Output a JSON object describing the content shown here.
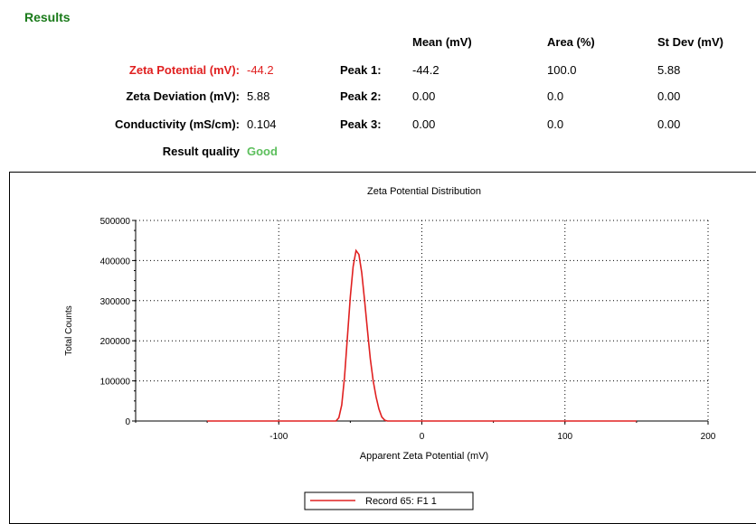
{
  "results": {
    "title": "Results",
    "zeta_potential": {
      "label": "Zeta Potential (mV):",
      "value": "-44.2"
    },
    "zeta_deviation": {
      "label": "Zeta Deviation (mV):",
      "value": "5.88"
    },
    "conductivity": {
      "label": "Conductivity (mS/cm):",
      "value": "0.104"
    },
    "quality": {
      "label": "Result quality",
      "value": "Good"
    }
  },
  "peaks": {
    "headers": {
      "mean": "Mean (mV)",
      "area": "Area (%)",
      "stdev": "St Dev (mV)"
    },
    "rows": [
      {
        "label": "Peak 1:",
        "mean": "-44.2",
        "area": "100.0",
        "stdev": "5.88"
      },
      {
        "label": "Peak 2:",
        "mean": "0.00",
        "area": "0.0",
        "stdev": "0.00"
      },
      {
        "label": "Peak 3:",
        "mean": "0.00",
        "area": "0.0",
        "stdev": "0.00"
      }
    ]
  },
  "colors": {
    "series": "#e02020",
    "title_green": "#1a7a1a",
    "good": "#5cbf5c",
    "value_red": "#e02020"
  },
  "chart_data": {
    "type": "line",
    "title": "Zeta Potential Distribution",
    "xlabel": "Apparent Zeta Potential (mV)",
    "ylabel": "Total Counts",
    "xlim": [
      -200,
      200
    ],
    "ylim": [
      0,
      500000
    ],
    "x_ticks": [
      -100,
      0,
      100,
      200
    ],
    "y_ticks": [
      0,
      100000,
      200000,
      300000,
      400000,
      500000
    ],
    "x_tick_labels": [
      "-100",
      "0",
      "100",
      "200"
    ],
    "y_tick_labels": [
      "0",
      "100000",
      "200000",
      "300000",
      "400000",
      "500000"
    ],
    "grid": true,
    "legend_position": "bottom",
    "series": [
      {
        "name": "Record 65: F1 1",
        "x": [
          -150,
          -60,
          -58,
          -56,
          -54,
          -52,
          -50,
          -48,
          -46,
          -44,
          -42,
          -40,
          -38,
          -36,
          -34,
          -32,
          -30,
          -28,
          -26,
          -24,
          -22,
          150
        ],
        "y": [
          0,
          0,
          8000,
          40000,
          110000,
          210000,
          310000,
          385000,
          425000,
          415000,
          370000,
          300000,
          225000,
          155000,
          100000,
          60000,
          30000,
          10000,
          2000,
          0,
          0,
          0
        ]
      }
    ]
  }
}
